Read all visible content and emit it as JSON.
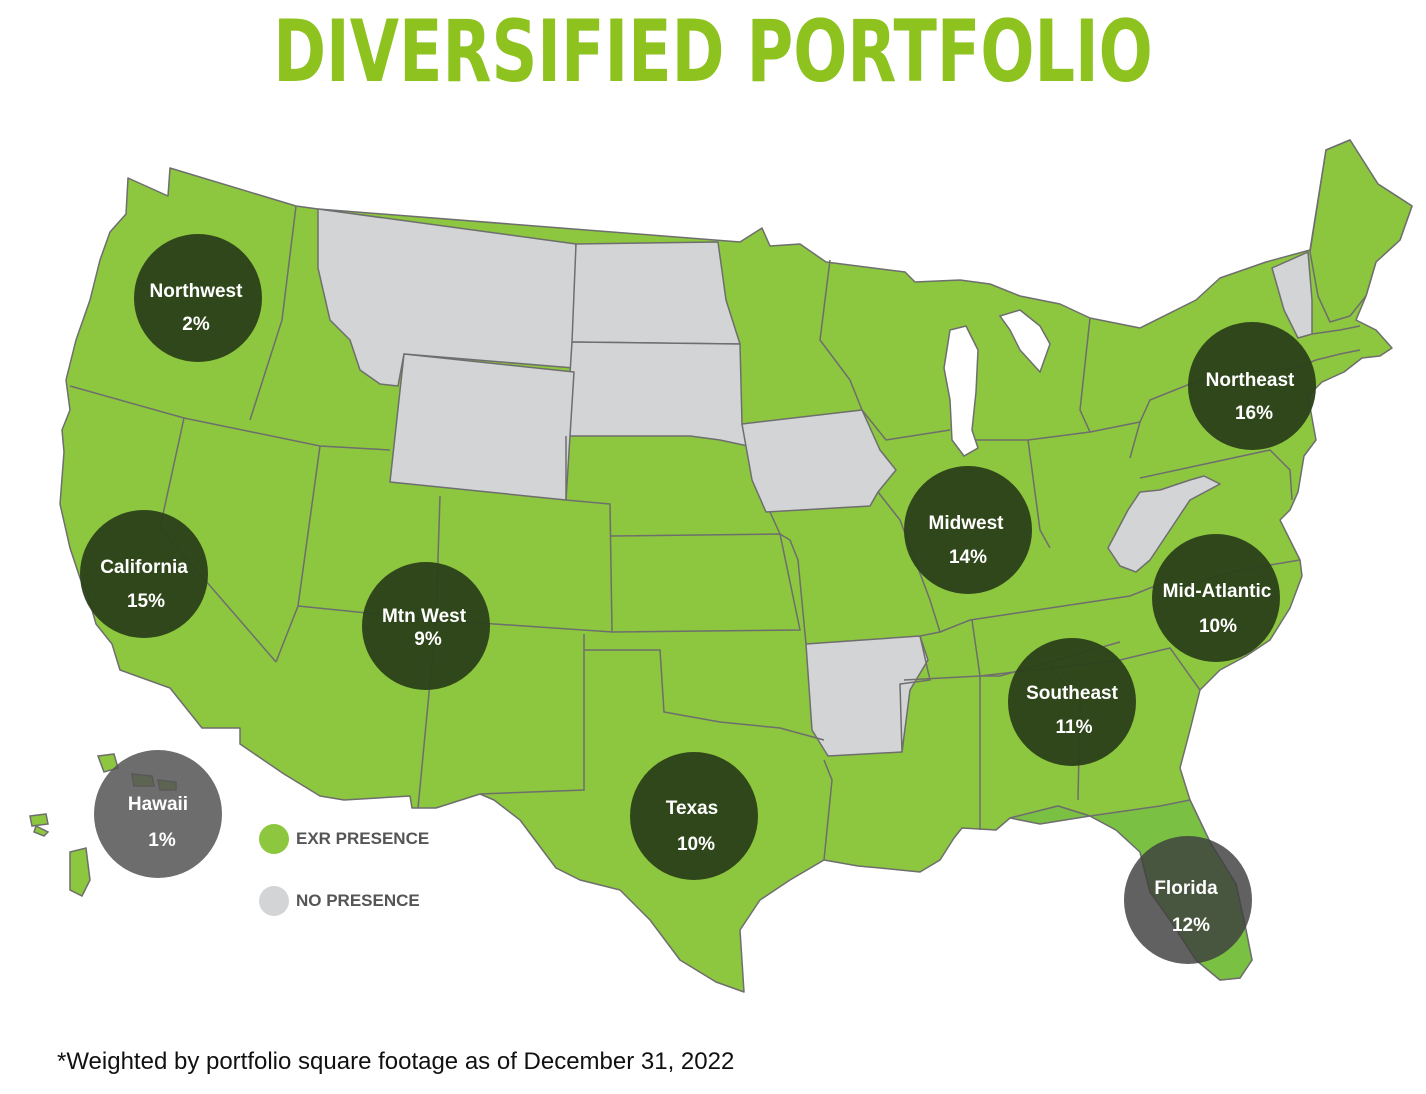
{
  "title": "DIVERSIFIED PORTFOLIO",
  "colors": {
    "title": "#8dc21f",
    "presence": "#8dc63f",
    "no_presence": "#d3d4d6",
    "maine": "#8cc63f",
    "florida": "#7ac143",
    "region_circle": "#2c421a",
    "hawaii_circle": "#555555"
  },
  "regions": [
    {
      "name": "Northwest",
      "share": "2%"
    },
    {
      "name": "California",
      "share": "15%"
    },
    {
      "name": "Mtn West",
      "share": "9%"
    },
    {
      "name": "Texas",
      "share": "10%"
    },
    {
      "name": "Midwest",
      "share": "14%"
    },
    {
      "name": "Southeast",
      "share": "11%"
    },
    {
      "name": "Mid-Atlantic",
      "share": "10%"
    },
    {
      "name": "Northeast",
      "share": "16%"
    },
    {
      "name": "Florida",
      "share": "12%"
    },
    {
      "name": "Hawaii",
      "share": "1%"
    }
  ],
  "legend": [
    {
      "label": "EXR PRESENCE",
      "color": "#8dc63f"
    },
    {
      "label": "NO PRESENCE",
      "color": "#d3d4d6"
    }
  ],
  "footnote": "*Weighted by portfolio square footage as of December 31, 2022"
}
